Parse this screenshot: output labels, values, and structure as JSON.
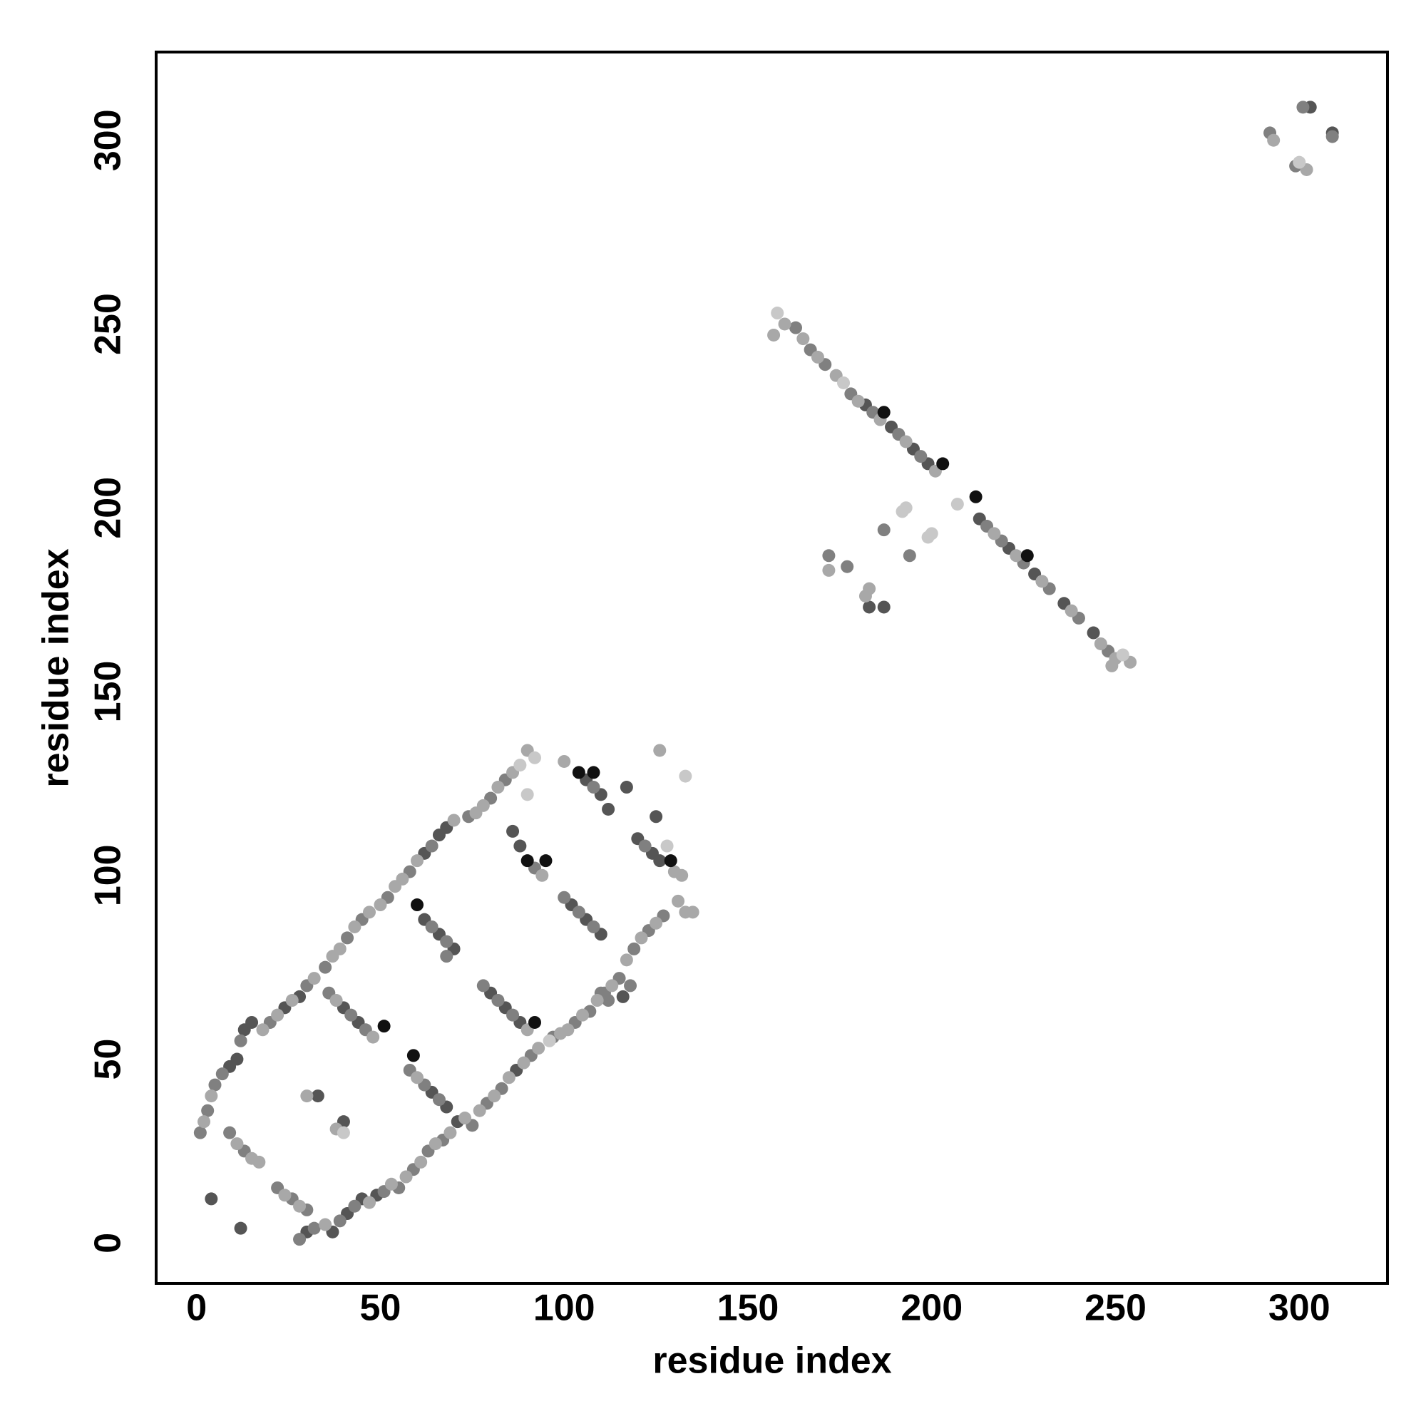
{
  "chart_data": {
    "type": "scatter",
    "xlabel": "residue index",
    "ylabel": "residue index",
    "xlim": [
      -11,
      324
    ],
    "ylim": [
      -11,
      324
    ],
    "xticks": [
      0,
      50,
      100,
      150,
      200,
      250,
      300
    ],
    "yticks": [
      0,
      50,
      100,
      150,
      200,
      250,
      300
    ],
    "grid": false,
    "series": [
      {
        "color": "#555555",
        "x": [
          303,
          309,
          182,
          189,
          195,
          199,
          213,
          221,
          228,
          236,
          244,
          183,
          187,
          40,
          44,
          62,
          66,
          70,
          80,
          84,
          88,
          86,
          88,
          102,
          106,
          110,
          106,
          110,
          112,
          116,
          120,
          124,
          126,
          125,
          117,
          45,
          49,
          41,
          64,
          68,
          9,
          11,
          13,
          15,
          66,
          68,
          33,
          40,
          28,
          24,
          4,
          12,
          30,
          37,
          62,
          87,
          71
        ],
        "y": [
          309,
          302,
          228,
          222,
          216,
          212,
          197,
          189,
          182,
          174,
          166,
          173,
          173,
          64,
          60,
          88,
          84,
          80,
          68,
          64,
          60,
          112,
          108,
          92,
          88,
          84,
          126,
          122,
          118,
          67,
          110,
          106,
          104,
          116,
          124,
          12,
          13,
          8,
          41,
          37,
          48,
          50,
          58,
          60,
          111,
          113,
          40,
          33,
          67,
          64,
          12,
          4,
          3,
          3,
          106,
          47,
          33
        ]
      },
      {
        "color": "#808080",
        "x": [
          292,
          301,
          309,
          299,
          163,
          167,
          171,
          178,
          184,
          191,
          197,
          215,
          219,
          225,
          232,
          240,
          248,
          172,
          177,
          187,
          194,
          5,
          7,
          12,
          20,
          30,
          35,
          41,
          45,
          52,
          58,
          64,
          74,
          80,
          84,
          28,
          32,
          39,
          43,
          51,
          55,
          59,
          63,
          67,
          75,
          79,
          83,
          91,
          97,
          103,
          107,
          111,
          115,
          119,
          123,
          127,
          36,
          42,
          46,
          58,
          62,
          66,
          64,
          68,
          68,
          78,
          82,
          86,
          92,
          100,
          104,
          108,
          108,
          110,
          112,
          118,
          122,
          9,
          13,
          22,
          26,
          30,
          1,
          3
        ],
        "y": [
          302,
          309,
          301,
          293,
          249,
          243,
          239,
          231,
          226,
          220,
          214,
          195,
          191,
          185,
          178,
          170,
          161,
          187,
          184,
          194,
          187,
          43,
          46,
          55,
          60,
          70,
          75,
          83,
          88,
          94,
          101,
          108,
          116,
          121,
          126,
          1,
          4,
          6,
          10,
          14,
          15,
          20,
          25,
          28,
          32,
          38,
          42,
          51,
          56,
          60,
          63,
          68,
          72,
          80,
          85,
          89,
          68,
          62,
          58,
          47,
          43,
          39,
          86,
          82,
          78,
          70,
          66,
          62,
          102,
          94,
          90,
          86,
          124,
          68,
          66,
          70,
          108,
          30,
          25,
          15,
          12,
          9,
          30,
          36
        ]
      },
      {
        "color": "#a8a8a8",
        "x": [
          293,
          302,
          157,
          160,
          165,
          169,
          174,
          180,
          186,
          193,
          201,
          217,
          223,
          230,
          238,
          246,
          250,
          254,
          249,
          172,
          182,
          183,
          2,
          4,
          18,
          22,
          26,
          32,
          37,
          39,
          43,
          47,
          50,
          54,
          56,
          60,
          70,
          76,
          78,
          82,
          86,
          90,
          35,
          47,
          53,
          57,
          61,
          65,
          69,
          73,
          77,
          81,
          85,
          89,
          93,
          99,
          101,
          105,
          109,
          113,
          117,
          121,
          125,
          131,
          133,
          135,
          38,
          48,
          60,
          90,
          94,
          100,
          126,
          130,
          132,
          11,
          15,
          17,
          24,
          28,
          30,
          38
        ],
        "y": [
          300,
          292,
          247,
          250,
          246,
          241,
          236,
          229,
          224,
          218,
          210,
          193,
          187,
          180,
          172,
          163,
          159,
          158,
          157,
          183,
          176,
          178,
          33,
          40,
          58,
          62,
          66,
          72,
          78,
          80,
          86,
          90,
          92,
          97,
          99,
          104,
          115,
          117,
          119,
          124,
          128,
          134,
          5,
          11,
          16,
          18,
          22,
          27,
          30,
          34,
          36,
          40,
          45,
          49,
          53,
          57,
          58,
          62,
          66,
          70,
          77,
          83,
          87,
          93,
          90,
          90,
          66,
          56,
          45,
          58,
          100,
          131,
          134,
          101,
          100,
          27,
          23,
          22,
          13,
          10,
          40,
          31
        ]
      },
      {
        "color": "#c8c8c8",
        "x": [
          300,
          158,
          176,
          207,
          193,
          200,
          199,
          192,
          252,
          88,
          92,
          133,
          40,
          128,
          96,
          90
        ],
        "y": [
          294,
          253,
          234,
          201,
          200,
          193,
          192,
          199,
          160,
          130,
          132,
          127,
          30,
          108,
          55,
          122
        ]
      },
      {
        "color": "#111111",
        "x": [
          187,
          203,
          212,
          226,
          60,
          92,
          51,
          104,
          108,
          90,
          129,
          59,
          95
        ],
        "y": [
          226,
          212,
          203,
          187,
          92,
          60,
          59,
          128,
          128,
          104,
          104,
          51,
          104
        ]
      }
    ]
  }
}
